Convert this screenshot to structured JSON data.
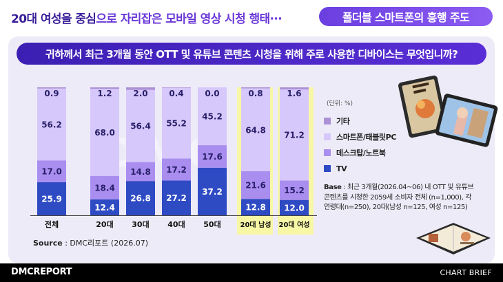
{
  "headline": {
    "prefix": "20대 여성을 중심",
    "suffix": "으로 자리잡은 모바일 영상 시청 행태···"
  },
  "pill": "폴더블 스마트폰의 흥행 주도",
  "question": "귀하께서 최근 3개월 동안 OTT 및 유튜브 콘텐츠 시청을 위해 주로 사용한 디바이스는 무엇입니까?",
  "watermark": "DMC",
  "unit_label": "(단위: %)",
  "source": {
    "label": "Source",
    "text": " : DMC리포트 (2026.07)"
  },
  "base": {
    "label": "Base",
    "text": " : 최근 3개월(2026.04~06) 내 OTT 및 유튜브 콘텐츠를 시청한 2059세 소비자 전체 (n=1,000), 각 연령대(n=250), 20대(남성 n=125, 여성 n=125)"
  },
  "footer": {
    "brand": "DMCREPORT",
    "brief": "CHART BRIEF"
  },
  "colors": {
    "tv": "#2e4bc4",
    "desktop": "#a98ef0",
    "smartphone": "#d6c8fa",
    "other": "#ab90d6",
    "highlight": "#f7f7a6"
  },
  "icons": [
    "tablet-illustration",
    "foldable-phone-illustration"
  ],
  "chart_data": {
    "type": "bar",
    "stacked": true,
    "percent": true,
    "categories": [
      "전체",
      "20대",
      "30대",
      "40대",
      "50대",
      "20대 남성",
      "20대 여성"
    ],
    "highlighted": [
      "20대 남성",
      "20대 여성"
    ],
    "series": [
      {
        "name": "TV",
        "values": [
          25.9,
          12.4,
          26.8,
          27.2,
          37.2,
          12.8,
          12.0
        ]
      },
      {
        "name": "데스크탑/노트북",
        "values": [
          17.0,
          18.4,
          14.8,
          17.2,
          17.6,
          21.6,
          15.2
        ]
      },
      {
        "name": "스마트폰/태블릿PC",
        "values": [
          56.2,
          68.0,
          56.4,
          55.2,
          45.2,
          64.8,
          71.2
        ]
      },
      {
        "name": "기타",
        "values": [
          0.9,
          1.2,
          2.0,
          0.4,
          0.0,
          0.8,
          1.6
        ]
      }
    ],
    "value_labels": [
      [
        "25.9",
        "12.4",
        "26.8",
        "27.2",
        "37.2",
        "12.8",
        "12.0"
      ],
      [
        "17.0",
        "18.4",
        "14.8",
        "17.2",
        "17.6",
        "21.6",
        "15.2"
      ],
      [
        "56.2",
        "68.0",
        "56.4",
        "55.2",
        "45.2",
        "64.8",
        "71.2"
      ],
      [
        "0.9",
        "1.2",
        "2.0",
        "0.4",
        "0.0",
        "0.8",
        "1.6"
      ]
    ],
    "ylim": [
      0,
      100
    ],
    "xlabel": "",
    "ylabel": "",
    "grid": false,
    "legend_position": "right"
  }
}
